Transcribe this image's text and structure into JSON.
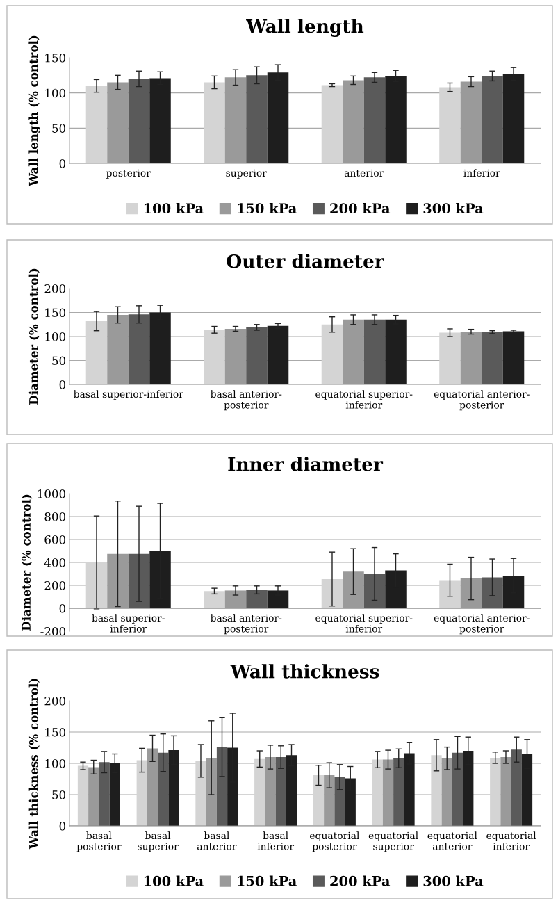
{
  "chart_data": [
    {
      "type": "bar",
      "title": "Wall length",
      "ylabel": "Wall length (% control)",
      "categories": [
        "posterior",
        "superior",
        "anterior",
        "inferior"
      ],
      "series": [
        {
          "name": "100 kPa",
          "color": "#d4d4d4",
          "values": [
            110,
            115,
            111,
            108
          ],
          "errors": [
            9,
            9,
            2,
            6
          ]
        },
        {
          "name": "150 kPa",
          "color": "#9a9a9a",
          "values": [
            115,
            122,
            118,
            116
          ],
          "errors": [
            10,
            11,
            6,
            7
          ]
        },
        {
          "name": "200 kPa",
          "color": "#5a5a5a",
          "values": [
            120,
            125,
            122,
            124
          ],
          "errors": [
            11,
            12,
            7,
            7
          ]
        },
        {
          "name": "300 kPa",
          "color": "#1e1e1e",
          "values": [
            121,
            129,
            124,
            127
          ],
          "errors": [
            9,
            11,
            8,
            9
          ]
        }
      ],
      "ylim": [
        0,
        150
      ],
      "yticks": [
        0,
        50,
        100,
        150
      ],
      "grid": "y",
      "legend": "bottom"
    },
    {
      "type": "bar",
      "title": "Outer diameter",
      "ylabel": "Diameter (% control)",
      "categories": [
        "basal superior-inferior",
        "basal anterior-\nposterior",
        "equatorial superior-\ninferior",
        "equatorial anterior-\nposterior"
      ],
      "series": [
        {
          "color": "#d4d4d4",
          "values": [
            132,
            114,
            125,
            108
          ],
          "errors": [
            20,
            7,
            16,
            8
          ]
        },
        {
          "color": "#9a9a9a",
          "values": [
            145,
            116,
            135,
            110
          ],
          "errors": [
            17,
            5,
            10,
            5
          ]
        },
        {
          "color": "#5a5a5a",
          "values": [
            146,
            119,
            135,
            109
          ],
          "errors": [
            18,
            6,
            10,
            3
          ]
        },
        {
          "color": "#1e1e1e",
          "values": [
            150,
            122,
            135,
            111
          ],
          "errors": [
            15,
            5,
            9,
            2
          ]
        }
      ],
      "ylim": [
        0,
        200
      ],
      "yticks": [
        0,
        50,
        100,
        150,
        200
      ],
      "grid": "y"
    },
    {
      "type": "bar",
      "title": "Inner diameter",
      "ylabel": "Diameter (% control)",
      "categories": [
        "basal superior-\ninferior",
        "basal anterior-\nposterior",
        "equatorial superior-\ninferior",
        "equatorial anterior-\nposterior"
      ],
      "series": [
        {
          "color": "#d4d4d4",
          "values": [
            400,
            150,
            255,
            245
          ],
          "errors": [
            405,
            25,
            235,
            140
          ]
        },
        {
          "color": "#9a9a9a",
          "values": [
            475,
            155,
            320,
            260
          ],
          "errors": [
            460,
            40,
            200,
            185
          ]
        },
        {
          "color": "#5a5a5a",
          "values": [
            475,
            160,
            300,
            270
          ],
          "errors": [
            415,
            35,
            230,
            160
          ]
        },
        {
          "color": "#1e1e1e",
          "values": [
            500,
            155,
            330,
            285
          ],
          "errors": [
            415,
            40,
            145,
            150
          ]
        }
      ],
      "ylim": [
        -200,
        1000
      ],
      "yticks": [
        -200,
        0,
        200,
        400,
        600,
        800,
        1000
      ],
      "grid": "y"
    },
    {
      "type": "bar",
      "title": "Wall thickness",
      "ylabel": "Wall thickness (% control)",
      "categories": [
        "basal\nposterior",
        "basal\nsuperior",
        "basal\nanterior",
        "basal\ninferior",
        "equatorial\nposterior",
        "equatorial\nsuperior",
        "equatorial\nanterior",
        "equatorial\ninferior"
      ],
      "series": [
        {
          "name": "100 kPa",
          "color": "#d4d4d4",
          "values": [
            96,
            105,
            104,
            107,
            81,
            106,
            113,
            109
          ],
          "errors": [
            6,
            19,
            26,
            13,
            16,
            13,
            25,
            9
          ]
        },
        {
          "name": "150 kPa",
          "color": "#9a9a9a",
          "values": [
            94,
            124,
            109,
            110,
            81,
            106,
            108,
            110
          ],
          "errors": [
            11,
            21,
            59,
            19,
            20,
            15,
            18,
            10
          ]
        },
        {
          "name": "200 kPa",
          "color": "#5a5a5a",
          "values": [
            102,
            117,
            126,
            110,
            78,
            108,
            117,
            122
          ],
          "errors": [
            17,
            30,
            47,
            18,
            20,
            15,
            26,
            20
          ]
        },
        {
          "name": "300 kPa",
          "color": "#1e1e1e",
          "values": [
            100,
            121,
            125,
            113,
            76,
            116,
            120,
            115
          ],
          "errors": [
            15,
            23,
            55,
            17,
            19,
            17,
            22,
            23
          ]
        }
      ],
      "ylim": [
        0,
        200
      ],
      "yticks": [
        0,
        50,
        100,
        150,
        200
      ],
      "grid": "y",
      "legend": "bottom"
    }
  ]
}
